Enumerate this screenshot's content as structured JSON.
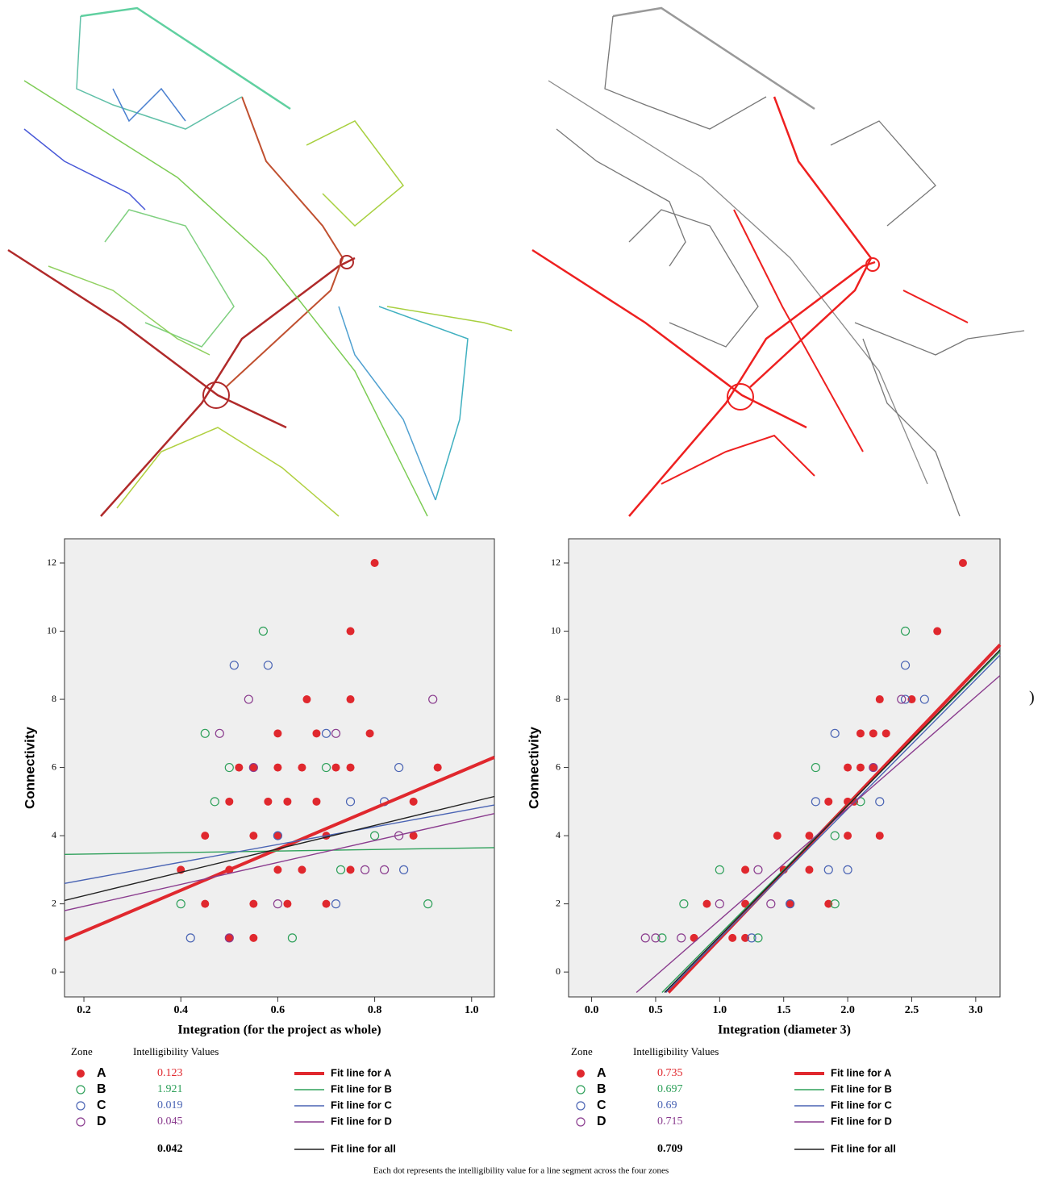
{
  "stray_text": ")",
  "caption": "Each dot represents the intelligibility value for a line segment across the four zones",
  "chart_data": [
    {
      "type": "scatter",
      "xlabel": "Integration (for the project as whole)",
      "ylabel": "Connectivity",
      "xlim": [
        0.16,
        1.047
      ],
      "ylim": [
        -0.73,
        12.71
      ],
      "xticks": [
        0.2,
        0.4,
        0.6,
        0.8,
        {
          "value": 1,
          "label": "1.0"
        }
      ],
      "yticks": [
        0,
        2,
        4,
        6,
        8,
        10,
        12
      ],
      "legend_title": "Zone",
      "values_title": "Intelligibility Values",
      "series": [
        {
          "name": "A",
          "color": "#e0282e",
          "marker": "filled",
          "intelligibility": 0.123,
          "x": [
            0.8,
            0.75,
            0.75,
            0.66,
            0.93,
            0.88,
            0.79,
            0.75,
            0.72,
            0.65,
            0.6,
            0.55,
            0.52,
            0.58,
            0.62,
            0.68,
            0.5,
            0.45,
            0.55,
            0.6,
            0.7,
            0.88,
            0.4,
            0.5,
            0.6,
            0.65,
            0.75,
            0.45,
            0.55,
            0.62,
            0.7,
            0.5,
            0.55,
            0.68,
            0.6
          ],
          "values": [
            12,
            10,
            8,
            8,
            6,
            5,
            7,
            6,
            6,
            6,
            6,
            6,
            6,
            5,
            5,
            5,
            5,
            4,
            4,
            4,
            4,
            4,
            3,
            3,
            3,
            3,
            3,
            2,
            2,
            2,
            2,
            1,
            1,
            7,
            7
          ]
        },
        {
          "name": "B",
          "color": "#2ea05a",
          "marker": "open",
          "intelligibility": 1.921,
          "x": [
            0.57,
            0.45,
            0.5,
            0.47,
            0.63,
            0.91,
            0.4,
            0.8,
            0.73,
            0.7
          ],
          "values": [
            10,
            7,
            6,
            5,
            1,
            2,
            2,
            4,
            3,
            6
          ]
        },
        {
          "name": "C",
          "color": "#4a64b4",
          "marker": "open",
          "intelligibility": 0.019,
          "x": [
            0.51,
            0.58,
            0.85,
            0.7,
            0.75,
            0.82,
            0.86,
            0.42,
            0.6,
            0.72
          ],
          "values": [
            9,
            9,
            6,
            7,
            5,
            5,
            3,
            1,
            4,
            2
          ]
        },
        {
          "name": "D",
          "color": "#8a3c8e",
          "marker": "open",
          "intelligibility": 0.045,
          "x": [
            0.92,
            0.54,
            0.48,
            0.72,
            0.55,
            0.85,
            0.82,
            0.5,
            0.6,
            0.78
          ],
          "values": [
            8,
            8,
            7,
            7,
            6,
            4,
            3,
            1,
            2,
            3
          ]
        }
      ],
      "fit_lines": [
        {
          "name": "Fit line for A",
          "color": "#e0282e",
          "x": [
            0.16,
            1.047
          ],
          "values": [
            0.95,
            6.3
          ]
        },
        {
          "name": "Fit line for B",
          "color": "#2ea05a",
          "x": [
            0.16,
            1.047
          ],
          "values": [
            3.45,
            3.65
          ]
        },
        {
          "name": "Fit line for C",
          "color": "#4a64b4",
          "x": [
            0.16,
            1.047
          ],
          "values": [
            2.6,
            4.9
          ]
        },
        {
          "name": "Fit line for D",
          "color": "#8a3c8e",
          "x": [
            0.16,
            1.047
          ],
          "values": [
            1.8,
            4.65
          ]
        },
        {
          "name": "Fit line for all",
          "color": "#222222",
          "x": [
            0.16,
            1.047
          ],
          "values": [
            2.1,
            5.15
          ]
        }
      ],
      "all_value": 0.042
    },
    {
      "type": "scatter",
      "xlabel": "Integration (diameter 3)",
      "ylabel": "Connectivity",
      "xlim": [
        -0.18,
        3.19
      ],
      "ylim": [
        -0.73,
        12.71
      ],
      "xticks": [
        {
          "value": 0,
          "label": "0.0"
        },
        0.5,
        {
          "value": 1,
          "label": "1.0"
        },
        1.5,
        {
          "value": 2,
          "label": "2.0"
        },
        2.5,
        {
          "value": 3,
          "label": "3.0"
        }
      ],
      "yticks": [
        0,
        2,
        4,
        6,
        8,
        10,
        12
      ],
      "legend_title": "Zone",
      "values_title": "Intelligibility Values",
      "series": [
        {
          "name": "A",
          "color": "#e0282e",
          "marker": "filled",
          "intelligibility": 0.735,
          "x": [
            2.9,
            2.7,
            2.5,
            2.25,
            2.2,
            2.1,
            2.3,
            2.0,
            2.1,
            2.2,
            1.85,
            2.0,
            2.05,
            1.45,
            1.7,
            2.0,
            2.25,
            1.2,
            1.5,
            1.7,
            0.9,
            1.2,
            1.55,
            1.85,
            0.8,
            1.1,
            1.2
          ],
          "values": [
            12,
            10,
            8,
            8,
            7,
            7,
            7,
            6,
            6,
            6,
            5,
            5,
            5,
            4,
            4,
            4,
            4,
            3,
            3,
            3,
            2,
            2,
            2,
            2,
            1,
            1,
            1
          ]
        },
        {
          "name": "B",
          "color": "#2ea05a",
          "marker": "open",
          "intelligibility": 0.697,
          "x": [
            2.45,
            1.75,
            2.1,
            1.0,
            0.72,
            0.55,
            1.9,
            1.9,
            1.3
          ],
          "values": [
            10,
            6,
            5,
            3,
            2,
            1,
            2,
            4,
            1
          ]
        },
        {
          "name": "C",
          "color": "#4a64b4",
          "marker": "open",
          "intelligibility": 0.69,
          "x": [
            2.45,
            2.45,
            2.6,
            1.75,
            2.25,
            1.85,
            1.25,
            1.9,
            1.55,
            2.0
          ],
          "values": [
            9,
            8,
            8,
            5,
            5,
            3,
            1,
            7,
            2,
            3
          ]
        },
        {
          "name": "D",
          "color": "#8a3c8e",
          "marker": "open",
          "intelligibility": 0.715,
          "x": [
            2.42,
            0.42,
            0.5,
            0.7,
            1.3,
            2.2,
            1.0,
            1.4
          ],
          "values": [
            8,
            1,
            1,
            1,
            3,
            6,
            2,
            2
          ]
        }
      ],
      "fit_lines": [
        {
          "name": "Fit line for A",
          "color": "#e0282e",
          "x": [
            0.6,
            3.19
          ],
          "values": [
            -0.6,
            9.6
          ]
        },
        {
          "name": "Fit line for B",
          "color": "#2ea05a",
          "x": [
            0.55,
            3.19
          ],
          "values": [
            -0.6,
            9.4
          ]
        },
        {
          "name": "Fit line for C",
          "color": "#4a64b4",
          "x": [
            0.58,
            3.19
          ],
          "values": [
            -0.6,
            9.3
          ]
        },
        {
          "name": "Fit line for D",
          "color": "#8a3c8e",
          "x": [
            0.35,
            3.19
          ],
          "values": [
            -0.6,
            8.7
          ]
        },
        {
          "name": "Fit line for all",
          "color": "#222222",
          "x": [
            0.57,
            3.19
          ],
          "values": [
            -0.6,
            9.45
          ]
        }
      ],
      "all_value": 0.709
    }
  ]
}
